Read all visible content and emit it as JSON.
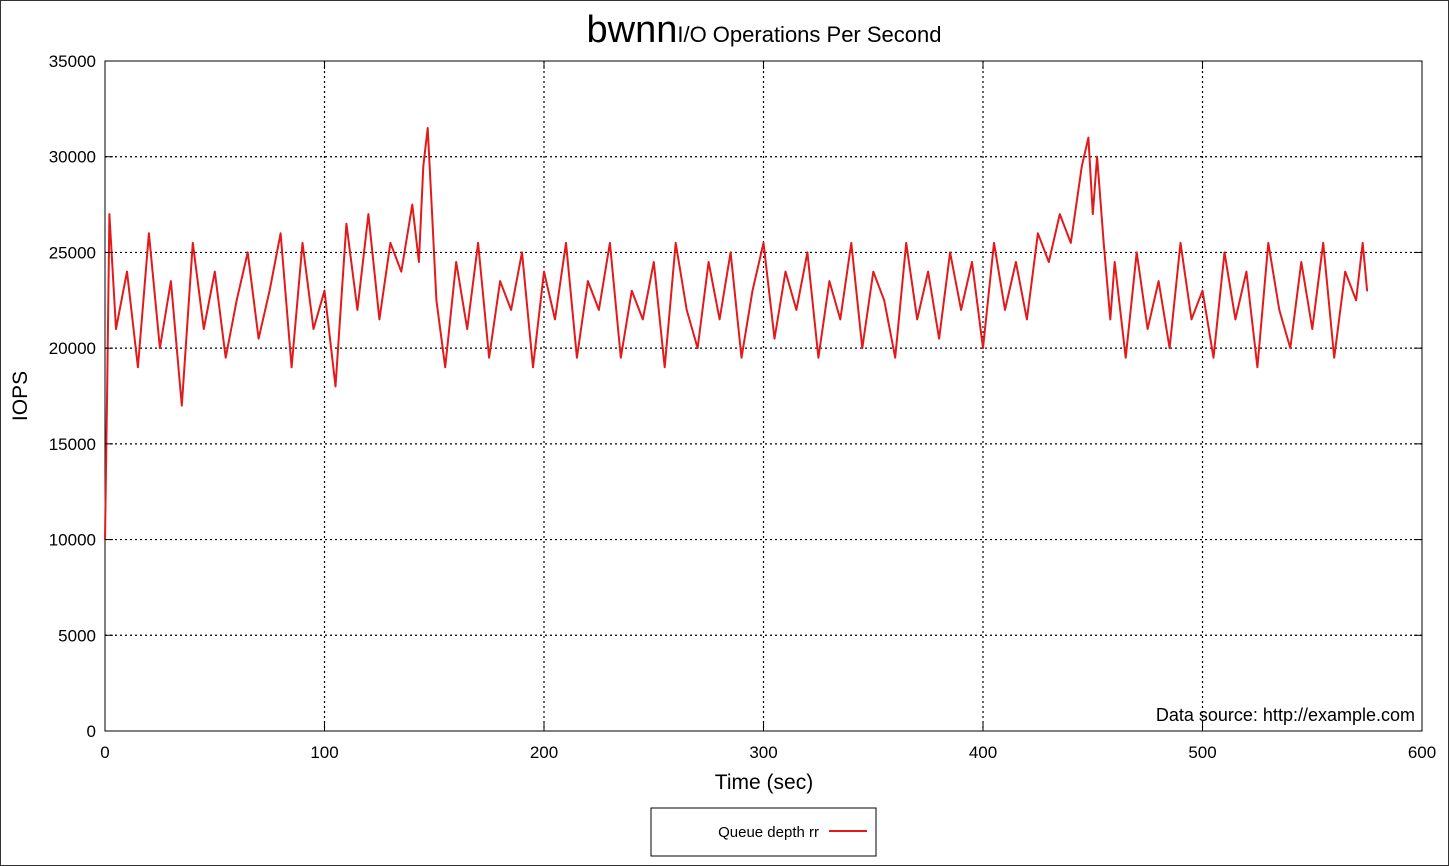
{
  "chart_data": {
    "type": "line",
    "title": "bwnn",
    "subtitle": "I/O Operations Per Second",
    "xlabel": "Time (sec)",
    "ylabel": "IOPS",
    "xlim": [
      0,
      600
    ],
    "ylim": [
      0,
      35000
    ],
    "x_ticks": [
      "0",
      "100",
      "200",
      "300",
      "400",
      "500",
      "600"
    ],
    "y_ticks": [
      "0",
      "5000",
      "10000",
      "15000",
      "20000",
      "25000",
      "30000",
      "35000"
    ],
    "grid": true,
    "annotation": "Data source: http://example.com",
    "legend_position": "bottom-center",
    "series": [
      {
        "name": "Queue depth rr",
        "color": "#e31a1c",
        "x": [
          0,
          1,
          2,
          5,
          10,
          15,
          20,
          25,
          30,
          35,
          40,
          45,
          50,
          55,
          60,
          65,
          70,
          75,
          80,
          85,
          90,
          95,
          100,
          105,
          110,
          115,
          120,
          125,
          130,
          135,
          140,
          143,
          145,
          147,
          149,
          151,
          155,
          160,
          165,
          170,
          175,
          180,
          185,
          190,
          195,
          200,
          205,
          210,
          215,
          220,
          225,
          230,
          235,
          240,
          245,
          250,
          255,
          260,
          265,
          270,
          275,
          280,
          285,
          290,
          295,
          300,
          305,
          310,
          315,
          320,
          325,
          330,
          335,
          340,
          345,
          350,
          355,
          360,
          365,
          370,
          375,
          380,
          385,
          390,
          395,
          400,
          405,
          410,
          415,
          420,
          425,
          430,
          435,
          440,
          445,
          448,
          450,
          452,
          455,
          458,
          460,
          465,
          470,
          475,
          480,
          485,
          490,
          495,
          500,
          505,
          510,
          515,
          520,
          525,
          530,
          535,
          540,
          545,
          550,
          555,
          560,
          565,
          570,
          573,
          575
        ],
        "y": [
          10000,
          18000,
          27000,
          21000,
          24000,
          19000,
          26000,
          20000,
          23500,
          17000,
          25500,
          21000,
          24000,
          19500,
          22500,
          25000,
          20500,
          23000,
          26000,
          19000,
          25500,
          21000,
          23000,
          18000,
          26500,
          22000,
          27000,
          21500,
          25500,
          24000,
          27500,
          24500,
          29500,
          31500,
          27000,
          22500,
          19000,
          24500,
          21000,
          25500,
          19500,
          23500,
          22000,
          25000,
          19000,
          24000,
          21500,
          25500,
          19500,
          23500,
          22000,
          25500,
          19500,
          23000,
          21500,
          24500,
          19000,
          25500,
          22000,
          20000,
          24500,
          21500,
          25000,
          19500,
          23000,
          25500,
          20500,
          24000,
          22000,
          25000,
          19500,
          23500,
          21500,
          25500,
          20000,
          24000,
          22500,
          19500,
          25500,
          21500,
          24000,
          20500,
          25000,
          22000,
          24500,
          20000,
          25500,
          22000,
          24500,
          21500,
          26000,
          24500,
          27000,
          25500,
          29500,
          31000,
          27000,
          30000,
          25500,
          21500,
          24500,
          19500,
          25000,
          21000,
          23500,
          20000,
          25500,
          21500,
          23000,
          19500,
          25000,
          21500,
          24000,
          19000,
          25500,
          22000,
          20000,
          24500,
          21000,
          25500,
          19500,
          24000,
          22500,
          25500,
          23000
        ]
      }
    ]
  }
}
